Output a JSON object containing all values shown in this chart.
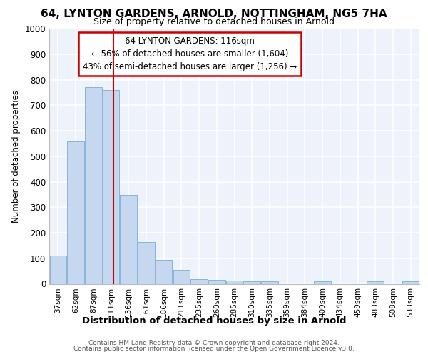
{
  "title_line1": "64, LYNTON GARDENS, ARNOLD, NOTTINGHAM, NG5 7HA",
  "title_line2": "Size of property relative to detached houses in Arnold",
  "xlabel": "Distribution of detached houses by size in Arnold",
  "ylabel": "Number of detached properties",
  "categories": [
    "37sqm",
    "62sqm",
    "87sqm",
    "111sqm",
    "136sqm",
    "161sqm",
    "186sqm",
    "211sqm",
    "235sqm",
    "260sqm",
    "285sqm",
    "310sqm",
    "335sqm",
    "359sqm",
    "384sqm",
    "409sqm",
    "434sqm",
    "459sqm",
    "483sqm",
    "508sqm",
    "533sqm"
  ],
  "values": [
    110,
    558,
    772,
    760,
    348,
    163,
    95,
    55,
    18,
    14,
    12,
    10,
    10,
    0,
    0,
    10,
    0,
    0,
    10,
    0,
    10
  ],
  "bar_color": "#c5d8f0",
  "bar_edge_color": "#7aadd4",
  "annotation_line1": "64 LYNTON GARDENS: 116sqm",
  "annotation_line2": "← 56% of detached houses are smaller (1,604)",
  "annotation_line3": "43% of semi-detached houses are larger (1,256) →",
  "annotation_box_color": "#ffffff",
  "annotation_box_edge_color": "#cc0000",
  "red_line_x": 3.15,
  "background_color": "#eef2fa",
  "grid_color": "#ffffff",
  "ylim": [
    0,
    1000
  ],
  "yticks": [
    0,
    100,
    200,
    300,
    400,
    500,
    600,
    700,
    800,
    900,
    1000
  ],
  "footer_line1": "Contains HM Land Registry data © Crown copyright and database right 2024.",
  "footer_line2": "Contains public sector information licensed under the Open Government Licence v3.0."
}
